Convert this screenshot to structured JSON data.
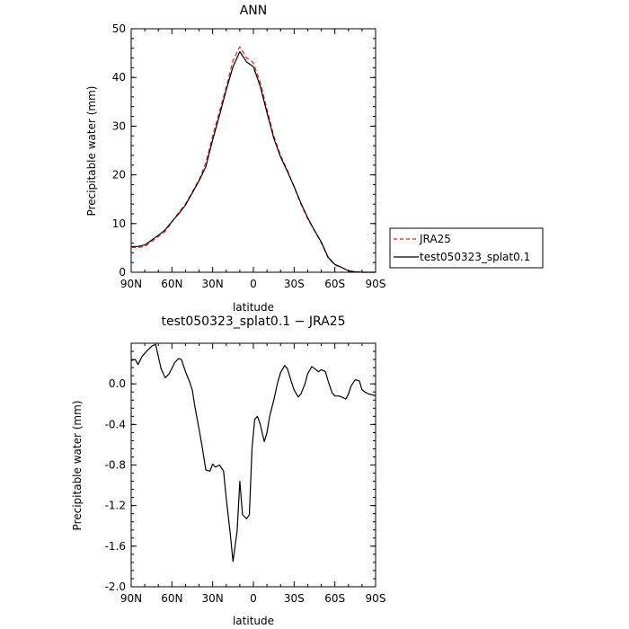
{
  "chart_data": [
    {
      "type": "line",
      "title": "ANN",
      "xlabel": "latitude",
      "ylabel": "Precipitable water (mm)",
      "xlim": [
        90,
        -90
      ],
      "ylim": [
        0,
        50
      ],
      "x_ticks": [
        90,
        60,
        30,
        0,
        -30,
        -60,
        -90
      ],
      "x_tick_labels": [
        "90N",
        "60N",
        "30N",
        "0",
        "30S",
        "60S",
        "90S"
      ],
      "y_ticks": [
        0,
        10,
        20,
        30,
        40,
        50
      ],
      "y_tick_labels": [
        "0",
        "10",
        "20",
        "30",
        "40",
        "50"
      ],
      "legend_position": "right",
      "series": [
        {
          "name": "JRA25",
          "color": "#e8201a",
          "dash": "dashed",
          "x": [
            90,
            85,
            80,
            75,
            70,
            65,
            60,
            55,
            50,
            45,
            40,
            35,
            30,
            25,
            20,
            15,
            10,
            5,
            2,
            0,
            -5,
            -10,
            -15,
            -20,
            -25,
            -30,
            -35,
            -40,
            -45,
            -50,
            -55,
            -60,
            -65,
            -70,
            -75,
            -80,
            -85,
            -90
          ],
          "y": [
            5.1,
            5.1,
            5.3,
            6.3,
            7.3,
            8.4,
            10.3,
            12.3,
            14.0,
            16.5,
            19.0,
            22.5,
            28.0,
            33.0,
            38.0,
            43.5,
            46.3,
            44.0,
            43.5,
            43.0,
            39.0,
            33.5,
            28.0,
            24.0,
            21.0,
            17.5,
            14.0,
            11.0,
            8.5,
            6.0,
            3.0,
            1.5,
            1.0,
            0.3,
            0.1,
            0.0,
            0.0,
            0.0
          ]
        },
        {
          "name": "test050323_splat0.1",
          "color": "#000000",
          "dash": "solid",
          "x": [
            90,
            85,
            80,
            75,
            70,
            65,
            60,
            55,
            50,
            45,
            40,
            35,
            30,
            25,
            20,
            15,
            10,
            5,
            2,
            0,
            -5,
            -10,
            -15,
            -20,
            -25,
            -30,
            -35,
            -40,
            -45,
            -50,
            -55,
            -60,
            -65,
            -70,
            -75,
            -80,
            -85,
            -90
          ],
          "y": [
            5.3,
            5.3,
            5.6,
            6.6,
            7.6,
            8.7,
            10.4,
            12.0,
            13.8,
            16.3,
            18.8,
            21.7,
            27.2,
            32.2,
            37.5,
            42.2,
            45.3,
            43.2,
            42.6,
            42.2,
            38.2,
            32.8,
            27.5,
            23.7,
            20.7,
            17.6,
            14.2,
            11.2,
            8.6,
            6.2,
            3.1,
            1.6,
            1.0,
            0.3,
            0.1,
            0.0,
            0.0,
            0.0
          ]
        }
      ]
    },
    {
      "type": "line",
      "title": "test050323_splat0.1 − JRA25",
      "xlabel": "latitude",
      "ylabel": "Precipitable water (mm)",
      "xlim": [
        90,
        -90
      ],
      "ylim": [
        -2.0,
        0.4
      ],
      "x_ticks": [
        90,
        60,
        30,
        0,
        -30,
        -60,
        -90
      ],
      "x_tick_labels": [
        "90N",
        "60N",
        "30N",
        "0",
        "30S",
        "60S",
        "90S"
      ],
      "y_ticks": [
        0.0,
        -0.4,
        -0.8,
        -1.2,
        -1.6,
        -2.0
      ],
      "y_tick_labels": [
        "0.0",
        "-0.4",
        "-0.8",
        "-1.2",
        "-1.6",
        "-2.0"
      ],
      "series": [
        {
          "color": "#000000",
          "dash": "solid",
          "x": [
            90,
            87,
            85,
            82,
            78,
            75,
            72,
            68,
            65,
            62,
            58,
            55,
            53,
            50,
            47,
            45,
            43,
            40,
            38,
            35,
            32,
            30,
            28,
            25,
            22,
            20,
            17,
            15,
            12,
            10,
            8,
            5,
            3,
            1,
            -1,
            -3,
            -5,
            -8,
            -10,
            -12,
            -15,
            -18,
            -20,
            -23,
            -25,
            -28,
            -30,
            -33,
            -35,
            -38,
            -40,
            -43,
            -45,
            -48,
            -50,
            -53,
            -55,
            -58,
            -60,
            -63,
            -65,
            -68,
            -70,
            -72,
            -75,
            -78,
            -80,
            -82,
            -85,
            -88,
            -90
          ],
          "y": [
            0.23,
            0.24,
            0.19,
            0.27,
            0.33,
            0.37,
            0.39,
            0.15,
            0.06,
            0.1,
            0.21,
            0.25,
            0.24,
            0.12,
            0.02,
            -0.06,
            -0.23,
            -0.45,
            -0.6,
            -0.85,
            -0.86,
            -0.79,
            -0.82,
            -0.8,
            -0.86,
            -1.13,
            -1.48,
            -1.75,
            -1.45,
            -0.96,
            -1.29,
            -1.33,
            -1.29,
            -0.63,
            -0.35,
            -0.32,
            -0.4,
            -0.57,
            -0.48,
            -0.32,
            -0.16,
            0.02,
            0.11,
            0.18,
            0.15,
            0.02,
            -0.06,
            -0.13,
            -0.1,
            0.0,
            0.1,
            0.17,
            0.15,
            0.12,
            0.14,
            0.12,
            0.03,
            -0.09,
            -0.12,
            -0.12,
            -0.13,
            -0.15,
            -0.1,
            -0.02,
            0.04,
            0.03,
            -0.06,
            -0.08,
            -0.1,
            -0.11,
            -0.12
          ]
        }
      ]
    }
  ]
}
